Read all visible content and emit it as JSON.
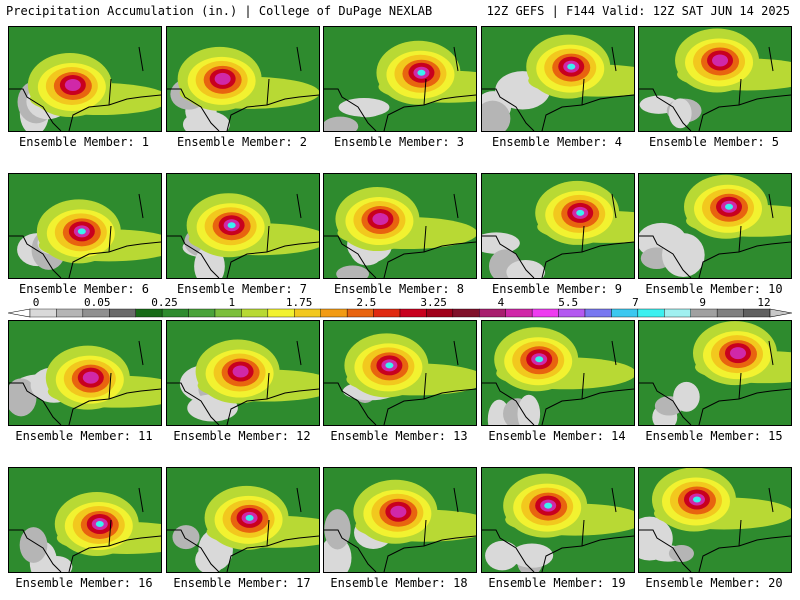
{
  "header": {
    "title_left": "Precipitation Accumulation (in.) | College of DuPage NEXLAB",
    "title_right": "12Z GEFS | F144 Valid: 12Z SAT JUN 14 2025"
  },
  "colorbar": {
    "tick_labels": [
      "0",
      "0.05",
      "0.25",
      "1",
      "1.75",
      "2.5",
      "3.25",
      "4",
      "5.5",
      "7",
      "9",
      "12"
    ],
    "colors": [
      "#d9d9d9",
      "#b5b5b5",
      "#909090",
      "#6b6b6b",
      "#186b18",
      "#2e8b2e",
      "#4aa33a",
      "#7cbf3c",
      "#b8d934",
      "#f2f230",
      "#f2c81e",
      "#f29b14",
      "#e8640f",
      "#e02a10",
      "#c8001e",
      "#a0001a",
      "#80102a",
      "#a81e6e",
      "#d028a8",
      "#ee3cf0",
      "#b45af0",
      "#7878f0",
      "#3cc8f0",
      "#3cf0f0",
      "#a0f0f0",
      "#a0a0a0",
      "#808080",
      "#606060"
    ]
  },
  "members": [
    {
      "label": "Ensemble Member: 1"
    },
    {
      "label": "Ensemble Member: 2"
    },
    {
      "label": "Ensemble Member: 3"
    },
    {
      "label": "Ensemble Member: 4"
    },
    {
      "label": "Ensemble Member: 5"
    },
    {
      "label": "Ensemble Member: 6"
    },
    {
      "label": "Ensemble Member: 7"
    },
    {
      "label": "Ensemble Member: 8"
    },
    {
      "label": "Ensemble Member: 9"
    },
    {
      "label": "Ensemble Member: 10"
    },
    {
      "label": "Ensemble Member: 11"
    },
    {
      "label": "Ensemble Member: 12"
    },
    {
      "label": "Ensemble Member: 13"
    },
    {
      "label": "Ensemble Member: 14"
    },
    {
      "label": "Ensemble Member: 15"
    },
    {
      "label": "Ensemble Member: 16"
    },
    {
      "label": "Ensemble Member: 17"
    },
    {
      "label": "Ensemble Member: 18"
    },
    {
      "label": "Ensemble Member: 19"
    },
    {
      "label": "Ensemble Member: 20"
    }
  ]
}
